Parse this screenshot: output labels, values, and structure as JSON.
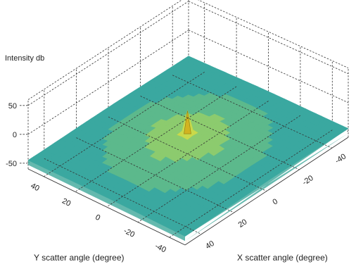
{
  "chart_data": {
    "type": "surface3d",
    "title": "",
    "zlabel": "Intensity db",
    "xlabel": "X scatter angle (degree)",
    "ylabel": "Y scatter angle (degree)",
    "z_ticks": [
      "50",
      "0",
      "-50"
    ],
    "z_tick_values": [
      50,
      0,
      -50
    ],
    "y_ticks": [
      "40",
      "20",
      "0",
      "-20",
      "-40"
    ],
    "y_tick_values": [
      40,
      20,
      0,
      -20,
      -40
    ],
    "x_ticks": [
      "40",
      "20",
      "0",
      "-20",
      "-40"
    ],
    "x_tick_values": [
      40,
      20,
      0,
      -20,
      -40
    ],
    "xlim": [
      -50,
      50
    ],
    "ylim": [
      -50,
      50
    ],
    "zlim": [
      -60,
      60
    ],
    "grid": true,
    "colormap": [
      "#3aa8a0",
      "#5cb98c",
      "#8ccb6e",
      "#c9d94a",
      "#f0e020"
    ],
    "surface": {
      "background_level_db": -45,
      "broad_peak_db": -25,
      "specular_peak_db": 15,
      "peak_location": [
        0,
        0
      ]
    }
  }
}
